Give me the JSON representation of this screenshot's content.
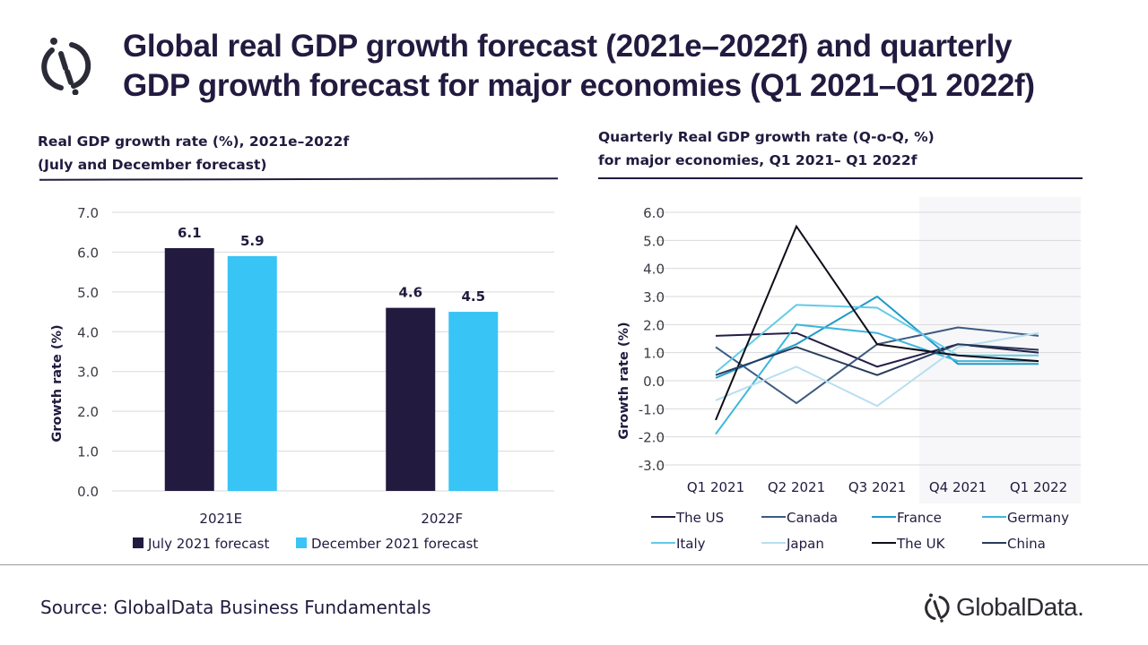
{
  "header": {
    "title_line1": "Global real GDP growth forecast (2021e–2022f) and quarterly",
    "title_line2": "GDP growth forecast for major economies (Q1 2021–Q1 2022f)",
    "logo_icon": "globaldata-logo-icon"
  },
  "footer": {
    "source": "Source: GlobalData Business Fundamentals",
    "brand": "GlobalData."
  },
  "colors": {
    "navy": "#221a3f",
    "cyan": "#38c4f5"
  },
  "chart_data": [
    {
      "type": "bar",
      "title": "Real GDP growth rate (%), 2021e–2022f",
      "subtitle": "(July and December forecast)",
      "xlabel": "",
      "ylabel": "Growth rate (%)",
      "ylim": [
        0,
        7
      ],
      "yticks": [
        "0.0",
        "1.0",
        "2.0",
        "3.0",
        "4.0",
        "5.0",
        "6.0",
        "7.0"
      ],
      "grid": true,
      "legend_position": "bottom",
      "categories": [
        "2021E",
        "2022F"
      ],
      "series": [
        {
          "name": "July 2021 forecast",
          "color": "#221a3f",
          "values": [
            6.1,
            4.6
          ],
          "labels": [
            "6.1",
            "4.6"
          ]
        },
        {
          "name": "December 2021 forecast",
          "color": "#38c4f5",
          "values": [
            5.9,
            4.5
          ],
          "labels": [
            "5.9",
            "4.5"
          ]
        }
      ]
    },
    {
      "type": "line",
      "title": "Quarterly Real GDP growth rate (Q-o-Q, %)",
      "subtitle": "for major economies, Q1 2021– Q1 2022f",
      "xlabel": "",
      "ylabel": "Growth rate (%)",
      "ylim": [
        -3,
        6
      ],
      "yticks": [
        "-3.0",
        "-2.0",
        "-1.0",
        "0.0",
        "1.0",
        "2.0",
        "3.0",
        "4.0",
        "5.0",
        "6.0"
      ],
      "grid": true,
      "legend_position": "bottom",
      "forecast_shaded_from": "Q4 2021",
      "categories": [
        "Q1 2021",
        "Q2 2021",
        "Q3 2021",
        "Q4 2021",
        "Q1 2022"
      ],
      "series": [
        {
          "name": "The US",
          "color": "#241c45",
          "values": [
            1.6,
            1.7,
            0.5,
            1.3,
            1.0
          ]
        },
        {
          "name": "Canada",
          "color": "#3d5a80",
          "values": [
            1.2,
            -0.8,
            1.3,
            1.9,
            1.6
          ]
        },
        {
          "name": "France",
          "color": "#1f9bc8",
          "values": [
            0.1,
            1.3,
            3.0,
            0.6,
            0.6
          ]
        },
        {
          "name": "Germany",
          "color": "#3fb6dc",
          "values": [
            -1.9,
            2.0,
            1.7,
            0.7,
            0.7
          ]
        },
        {
          "name": "Italy",
          "color": "#62cbe8",
          "values": [
            0.3,
            2.7,
            2.6,
            0.9,
            0.9
          ]
        },
        {
          "name": "Japan",
          "color": "#b8def0",
          "values": [
            -0.7,
            0.5,
            -0.9,
            1.2,
            1.7
          ]
        },
        {
          "name": "The UK",
          "color": "#0e0d18",
          "values": [
            -1.4,
            5.5,
            1.3,
            0.9,
            0.7
          ]
        },
        {
          "name": "China",
          "color": "#2a3a5c",
          "values": [
            0.2,
            1.2,
            0.2,
            1.3,
            1.1
          ]
        }
      ]
    }
  ]
}
